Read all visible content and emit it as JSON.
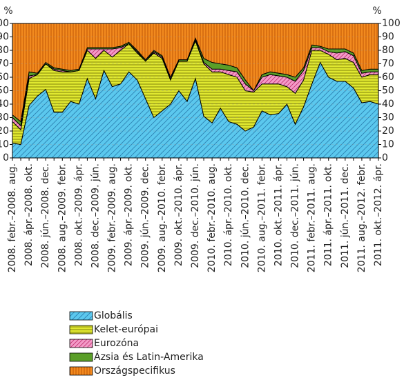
{
  "chart_data": {
    "type": "stacked_area",
    "ylabel": "%",
    "y2label": "%",
    "categories": [
      "2008. febr.–2008. aug.",
      null,
      "2008. ápr.–2008. okt.",
      null,
      "2008. jún.–2008. dec.",
      null,
      "2008. aug.–2009. febr.",
      null,
      "2008. okt.–2009. ápr.",
      null,
      "2008. dec.–2009. jún.",
      null,
      "2009. febr.–2009. aug.",
      null,
      "2009. ápr.–2009. okt.",
      null,
      "2009. jún.–2009. dec.",
      null,
      "2009. aug.–2010. febr.",
      null,
      "2009. okt.–2010. ápr.",
      null,
      "2009. dec.–2010. jún.",
      null,
      "2010. febr.–2010. aug.",
      null,
      "2010. ápr.–2010. okt.",
      null,
      "2010. jún.–2010. dec.",
      null,
      "2010. aug.–2011. febr.",
      null,
      "2010. okt.–2011. ápr.",
      null,
      "2010. dec.–2011. jún.",
      null,
      "2011. febr.–2011. aug.",
      null,
      "2011. ápr.–2011. okt.",
      null,
      "2011. jún.–2011. dec.",
      null,
      "2011. aug.–2012. febr.",
      null,
      "2011. okt.–2012. ápr."
    ],
    "series": [
      {
        "name": "Globális",
        "color": "#5bc8ee",
        "hatch": "diagonal",
        "values": [
          11,
          10,
          39,
          46,
          51,
          34,
          34,
          42,
          40,
          59,
          44,
          65,
          53,
          55,
          64,
          58,
          44,
          30,
          35,
          40,
          50,
          42,
          59,
          31,
          26,
          37,
          27,
          25,
          20,
          23,
          35,
          32,
          33,
          40,
          25,
          38,
          55,
          71,
          60,
          57,
          57,
          52,
          41,
          42,
          40
        ]
      },
      {
        "name": "Kelet-európai",
        "color": "#e0e830",
        "hatch": "horizontal",
        "values": [
          16,
          11,
          20,
          16,
          19,
          31,
          30,
          22,
          25,
          21,
          30,
          15,
          22,
          25,
          21,
          20,
          28,
          48,
          39,
          18,
          22,
          30,
          28,
          39,
          38,
          27,
          35,
          35,
          30,
          26,
          20,
          23,
          22,
          13,
          23,
          20,
          25,
          9,
          17,
          16,
          17,
          19,
          19,
          20,
          22
        ]
      },
      {
        "name": "Eurozóna",
        "color": "#f49ac8",
        "hatch": "diagonal",
        "values": [
          3,
          3,
          2,
          0,
          0,
          1,
          1,
          0,
          0,
          1,
          7,
          1,
          6,
          2,
          0,
          1,
          0,
          1,
          1,
          1,
          0,
          0,
          1,
          1,
          2,
          2,
          3,
          4,
          5,
          1,
          5,
          7,
          6,
          7,
          9,
          7,
          2,
          2,
          2,
          5,
          5,
          5,
          3,
          2,
          2
        ]
      },
      {
        "name": "Ázsia és Latin-Amerika",
        "color": "#5a9e28",
        "hatch": "none",
        "values": [
          2,
          3,
          3,
          1,
          1,
          1,
          1,
          1,
          1,
          1,
          1,
          1,
          1,
          1,
          1,
          1,
          1,
          1,
          1,
          1,
          1,
          1,
          1,
          3,
          5,
          4,
          4,
          3,
          3,
          0,
          2,
          2,
          2,
          2,
          3,
          2,
          2,
          1,
          2,
          3,
          2,
          2,
          2,
          2,
          2
        ]
      },
      {
        "name": "Országspecifikus",
        "color": "#f28a1e",
        "hatch": "vertical",
        "values": [
          68,
          73,
          36,
          37,
          29,
          33,
          34,
          35,
          34,
          18,
          18,
          18,
          18,
          17,
          14,
          20,
          27,
          20,
          24,
          40,
          27,
          27,
          11,
          26,
          29,
          30,
          31,
          33,
          42,
          50,
          38,
          36,
          37,
          38,
          40,
          33,
          16,
          17,
          19,
          19,
          19,
          22,
          35,
          34,
          34
        ]
      }
    ],
    "ylim": [
      0,
      100
    ],
    "yticks": [
      0,
      10,
      20,
      30,
      40,
      50,
      60,
      70,
      80,
      90,
      100
    ],
    "y2lim": [
      0,
      100
    ],
    "y2ticks": [
      0,
      10,
      20,
      30,
      40,
      50,
      60,
      70,
      80,
      90,
      100
    ],
    "grid": true,
    "legend": "bottom"
  }
}
